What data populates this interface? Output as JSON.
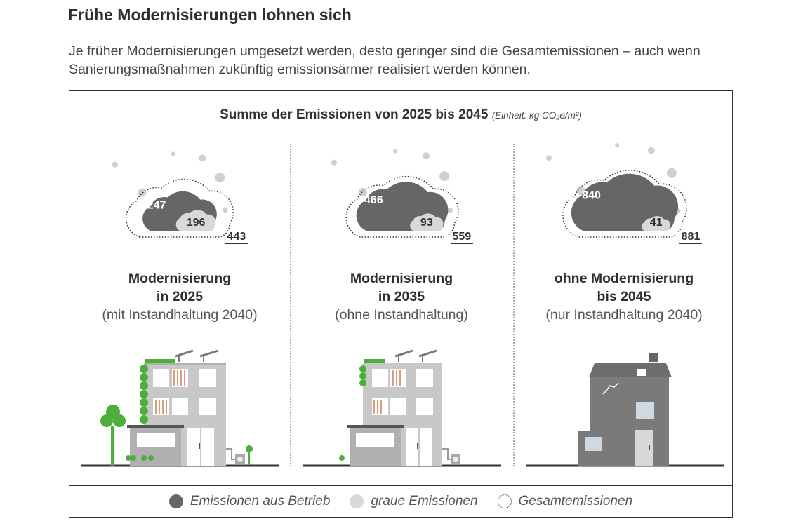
{
  "header": {
    "title": "Frühe Modernisierungen lohnen sich",
    "subtitle": "Je früher Modernisierungen umgesetzt werden, desto geringer sind die Gesamtemissionen – auch wenn Sanierungsmaßnahmen zukünftig emissionsärmer realisiert werden können."
  },
  "chart_data": {
    "type": "bar",
    "title": "Summe der Emissionen von 2025 bis 2045",
    "unit": "(Einheit: kg CO₂e/m²)",
    "categories": [
      {
        "line1": "Modernisierung",
        "line2": "in 2025",
        "line3": "(mit Instandhaltung 2040)"
      },
      {
        "line1": "Modernisierung",
        "line2": "in 2035",
        "line3": "(ohne Instandhaltung)"
      },
      {
        "line1": "ohne Modernisierung",
        "line2": "bis 2045",
        "line3": "(nur Instandhaltung 2040)"
      }
    ],
    "series": [
      {
        "name": "Emissionen aus Betrieb",
        "values": [
          247,
          466,
          840
        ],
        "color": "#666666"
      },
      {
        "name": "graue Emissionen",
        "values": [
          196,
          93,
          41
        ],
        "color": "#d8d8d8"
      },
      {
        "name": "Gesamtemissionen",
        "values": [
          443,
          559,
          881
        ],
        "color": "#333333"
      }
    ]
  },
  "legend": [
    {
      "label": "Emissionen aus Betrieb",
      "color": "#666666",
      "style": "filled"
    },
    {
      "label": "graue Emissionen",
      "color": "#d8d8d8",
      "style": "filled"
    },
    {
      "label": "Gesamtemissionen",
      "color": "#333333",
      "style": "dotted"
    }
  ],
  "colors": {
    "green": "#4caf3a",
    "dark_gray": "#666666",
    "light_gray": "#d8d8d8",
    "building_gray": "#c8c8c8",
    "old_house": "#7a7a7a"
  }
}
